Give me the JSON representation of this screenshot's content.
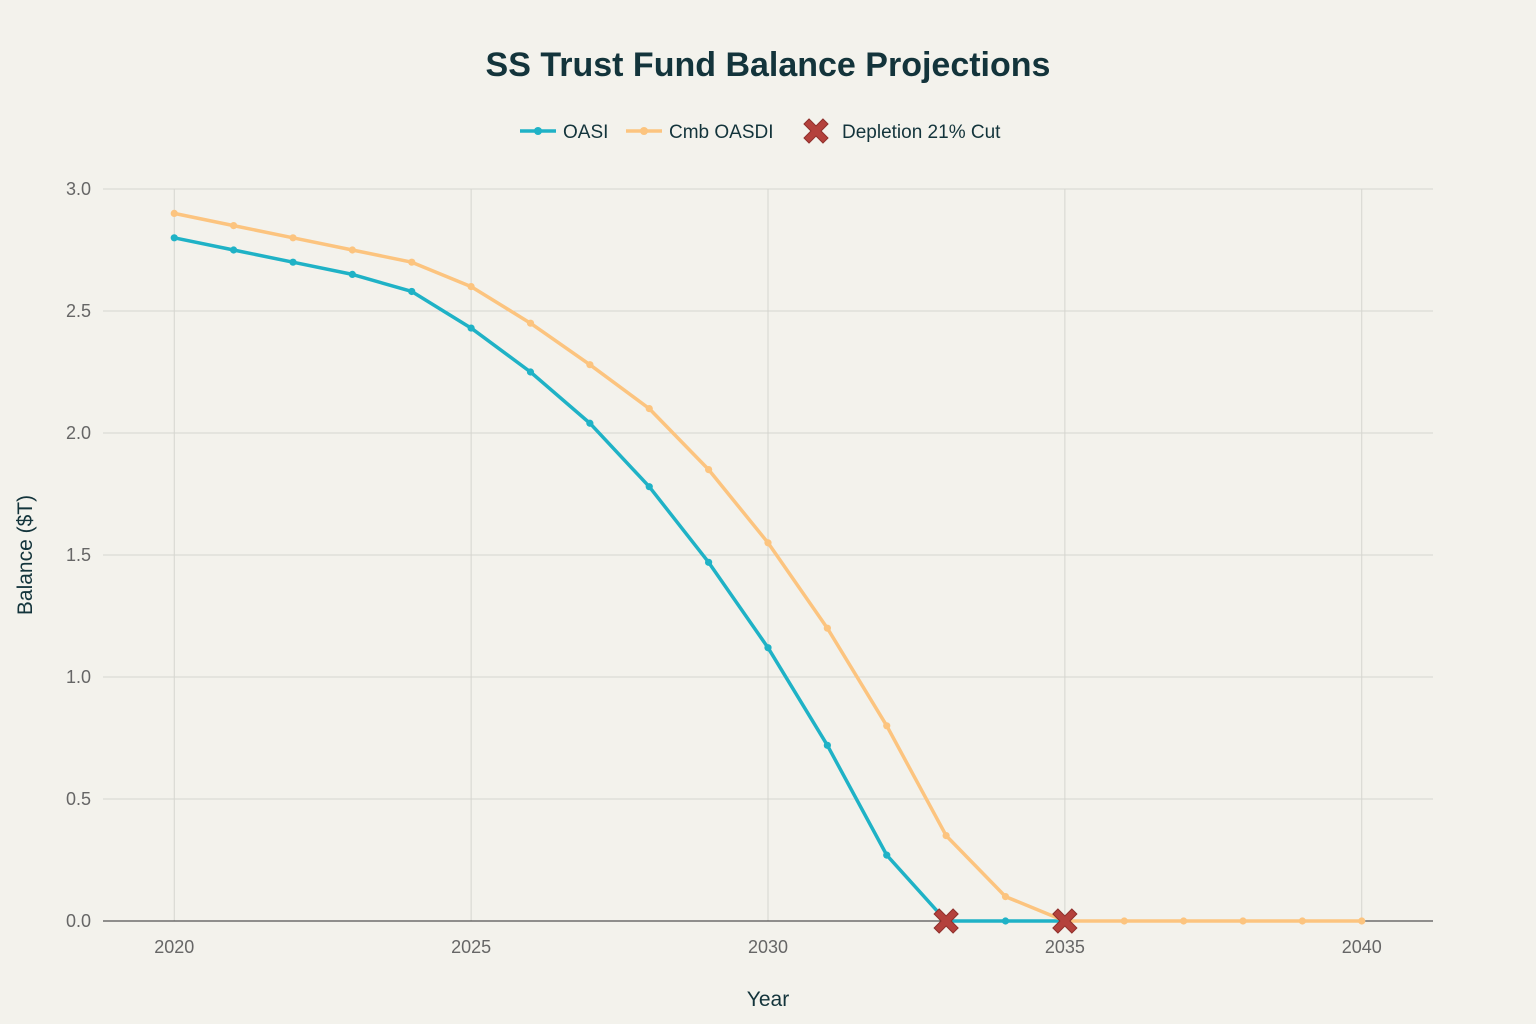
{
  "chart_data": {
    "type": "line",
    "title": "SS Trust Fund Balance Projections",
    "xlabel": "Year",
    "ylabel": "Balance ($T)",
    "xlim": [
      2018.8,
      2041.2
    ],
    "ylim": [
      0,
      3.0
    ],
    "x_ticks": [
      2020,
      2025,
      2030,
      2035,
      2040
    ],
    "y_ticks": [
      0.0,
      0.5,
      1.0,
      1.5,
      2.0,
      2.5,
      3.0
    ],
    "y_tick_labels": [
      "0.0",
      "0.5",
      "1.0",
      "1.5",
      "2.0",
      "2.5",
      "3.0"
    ],
    "grid": true,
    "legend_position": "top-center",
    "series": [
      {
        "name": "OASI",
        "color": "#1fb2c6",
        "marker": "circle",
        "x": [
          2020,
          2021,
          2022,
          2023,
          2024,
          2025,
          2026,
          2027,
          2028,
          2029,
          2030,
          2031,
          2032,
          2033,
          2034,
          2035
        ],
        "values": [
          2.8,
          2.75,
          2.7,
          2.65,
          2.58,
          2.43,
          2.25,
          2.04,
          1.78,
          1.47,
          1.12,
          0.72,
          0.27,
          0.0,
          0.0,
          0.0
        ]
      },
      {
        "name": "Cmb OASDI",
        "color": "#fcc47f",
        "marker": "circle",
        "x": [
          2020,
          2021,
          2022,
          2023,
          2024,
          2025,
          2026,
          2027,
          2028,
          2029,
          2030,
          2031,
          2032,
          2033,
          2034,
          2035,
          2036,
          2037,
          2038,
          2039,
          2040
        ],
        "values": [
          2.9,
          2.85,
          2.8,
          2.75,
          2.7,
          2.6,
          2.45,
          2.28,
          2.1,
          1.85,
          1.55,
          1.2,
          0.8,
          0.35,
          0.1,
          0.0,
          0.0,
          0.0,
          0.0,
          0.0,
          0.0
        ]
      },
      {
        "name": "Depletion 21% Cut",
        "color": "#b4413c",
        "marker": "x",
        "mode": "markers",
        "x": [
          2033,
          2035
        ],
        "values": [
          0.0,
          0.0
        ]
      }
    ]
  }
}
